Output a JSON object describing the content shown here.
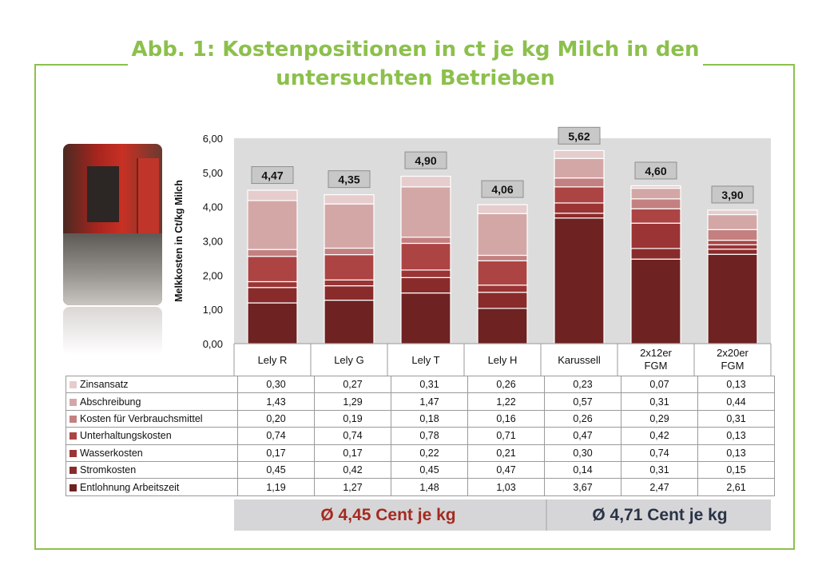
{
  "title": "Abb. 1: Kostenpositionen in ct je kg Milch in den untersuchten Betrieben",
  "title_line1": "Abb. 1: Kostenpositionen in ct je kg Milch in den",
  "title_line2": "untersuchten Betrieben",
  "colors": {
    "frame": "#8cc04c",
    "title": "#8cc04c",
    "avg1": "#a42a20",
    "avg2": "#2a3346"
  },
  "chart_data": {
    "type": "bar",
    "stacked": true,
    "ylabel": "Melkkosten in Ct/kg Milch",
    "ylim": [
      0,
      6
    ],
    "yticks": [
      "0,00",
      "1,00",
      "2,00",
      "3,00",
      "4,00",
      "5,00",
      "6,00"
    ],
    "grid": false,
    "categories": [
      "Lely R",
      "Lely G",
      "Lely T",
      "Lely H",
      "Karussell",
      "2x12er FGM",
      "2x20er FGM"
    ],
    "category_labels": [
      [
        "Lely R"
      ],
      [
        "Lely G"
      ],
      [
        "Lely T"
      ],
      [
        "Lely H"
      ],
      [
        "Karussell"
      ],
      [
        "2x12er",
        "FGM"
      ],
      [
        "2x20er",
        "FGM"
      ]
    ],
    "totals": [
      4.47,
      4.35,
      4.9,
      4.06,
      5.62,
      4.6,
      3.9
    ],
    "total_labels": [
      "4,47",
      "4,35",
      "4,90",
      "4,06",
      "5,62",
      "4,60",
      "3,90"
    ],
    "series": [
      {
        "name": "Entlohnung Arbeitszeit",
        "color": "#6e2222",
        "values": [
          1.19,
          1.27,
          1.48,
          1.03,
          3.67,
          2.47,
          2.61
        ],
        "labels": [
          "1,19",
          "1,27",
          "1,48",
          "1,03",
          "3,67",
          "2,47",
          "2,61"
        ]
      },
      {
        "name": "Stromkosten",
        "color": "#8a2b2b",
        "values": [
          0.45,
          0.42,
          0.45,
          0.47,
          0.14,
          0.31,
          0.15
        ],
        "labels": [
          "0,45",
          "0,42",
          "0,45",
          "0,47",
          "0,14",
          "0,31",
          "0,15"
        ]
      },
      {
        "name": "Wasserkosten",
        "color": "#9b3434",
        "values": [
          0.17,
          0.17,
          0.22,
          0.21,
          0.3,
          0.74,
          0.13
        ],
        "labels": [
          "0,17",
          "0,17",
          "0,22",
          "0,21",
          "0,30",
          "0,74",
          "0,13"
        ]
      },
      {
        "name": "Unterhaltungskosten",
        "color": "#ac4444",
        "values": [
          0.74,
          0.74,
          0.78,
          0.71,
          0.47,
          0.42,
          0.13
        ],
        "labels": [
          "0,74",
          "0,74",
          "0,78",
          "0,71",
          "0,47",
          "0,42",
          "0,13"
        ]
      },
      {
        "name": "Kosten für Verbrauchsmittel",
        "color": "#c48080",
        "values": [
          0.2,
          0.19,
          0.18,
          0.16,
          0.26,
          0.29,
          0.31
        ],
        "labels": [
          "0,20",
          "0,19",
          "0,18",
          "0,16",
          "0,26",
          "0,29",
          "0,31"
        ]
      },
      {
        "name": "Abschreibung",
        "color": "#d4a7a7",
        "values": [
          1.43,
          1.29,
          1.47,
          1.22,
          0.57,
          0.31,
          0.44
        ],
        "labels": [
          "1,43",
          "1,29",
          "1,47",
          "1,22",
          "0,57",
          "0,31",
          "0,44"
        ]
      },
      {
        "name": "Zinsansatz",
        "color": "#e6cccc",
        "values": [
          0.3,
          0.27,
          0.31,
          0.26,
          0.23,
          0.07,
          0.13
        ],
        "labels": [
          "0,30",
          "0,27",
          "0,31",
          "0,26",
          "0,23",
          "0,07",
          "0,13"
        ]
      }
    ]
  },
  "averages": {
    "group1": "Ø 4,45 Cent je kg",
    "group2": "Ø 4,71 Cent je kg"
  }
}
